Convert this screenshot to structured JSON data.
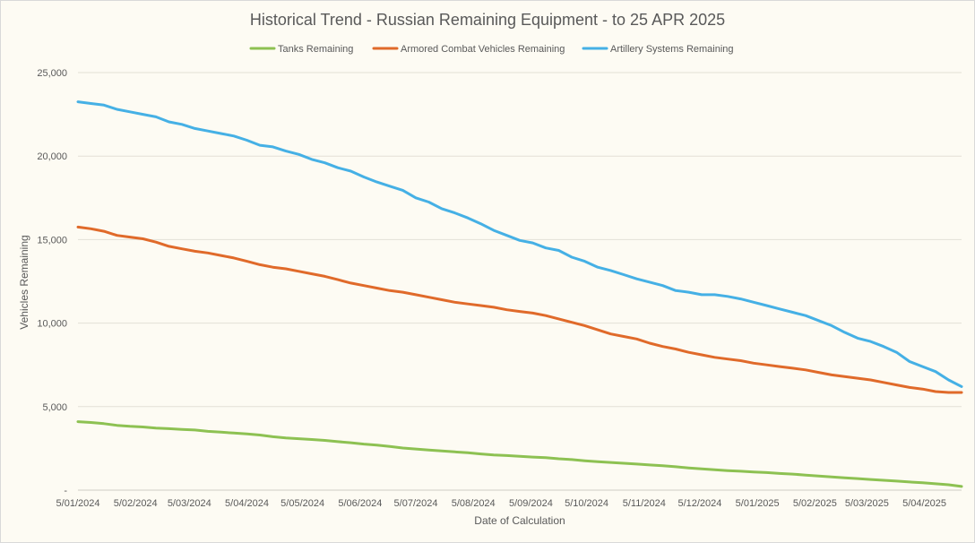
{
  "chart_data": {
    "type": "line",
    "title": "Historical Trend - Russian Remaining Equipment - to 25 APR 2025",
    "xlabel": "Date of Calculation",
    "ylabel": "Vehicles Remaining",
    "ylim": [
      0,
      25000
    ],
    "y_ticks": [
      0,
      5000,
      10000,
      15000,
      20000,
      25000
    ],
    "y_tick_labels": [
      "-",
      "5,000",
      "10,000",
      "15,000",
      "20,000",
      "25,000"
    ],
    "x_tick_labels": [
      "5/01/2024",
      "5/02/2024",
      "5/03/2024",
      "5/04/2024",
      "5/05/2024",
      "5/06/2024",
      "5/07/2024",
      "5/08/2024",
      "5/09/2024",
      "5/10/2024",
      "5/11/2024",
      "5/12/2024",
      "5/01/2025",
      "5/02/2025",
      "5/03/2025",
      "5/04/2025"
    ],
    "x_range": [
      "5/01/2024",
      "25/04/2025"
    ],
    "grid": true,
    "legend_position": "top",
    "series": [
      {
        "name": "Tanks Remaining",
        "color": "#8dc152",
        "points": [
          [
            "5/01/2024",
            4100
          ],
          [
            "12/01/2024",
            4050
          ],
          [
            "19/01/2024",
            3980
          ],
          [
            "26/01/2024",
            3880
          ],
          [
            "2/02/2024",
            3820
          ],
          [
            "9/02/2024",
            3780
          ],
          [
            "16/02/2024",
            3720
          ],
          [
            "23/02/2024",
            3680
          ],
          [
            "1/03/2024",
            3640
          ],
          [
            "8/03/2024",
            3600
          ],
          [
            "15/03/2024",
            3520
          ],
          [
            "22/03/2024",
            3470
          ],
          [
            "29/03/2024",
            3420
          ],
          [
            "5/04/2024",
            3370
          ],
          [
            "12/04/2024",
            3300
          ],
          [
            "19/04/2024",
            3200
          ],
          [
            "26/04/2024",
            3130
          ],
          [
            "3/05/2024",
            3080
          ],
          [
            "10/05/2024",
            3030
          ],
          [
            "17/05/2024",
            2980
          ],
          [
            "24/05/2024",
            2900
          ],
          [
            "31/05/2024",
            2840
          ],
          [
            "7/06/2024",
            2760
          ],
          [
            "14/06/2024",
            2700
          ],
          [
            "21/06/2024",
            2620
          ],
          [
            "28/06/2024",
            2520
          ],
          [
            "5/07/2024",
            2460
          ],
          [
            "12/07/2024",
            2400
          ],
          [
            "19/07/2024",
            2350
          ],
          [
            "26/07/2024",
            2290
          ],
          [
            "2/08/2024",
            2240
          ],
          [
            "9/08/2024",
            2170
          ],
          [
            "16/08/2024",
            2110
          ],
          [
            "23/08/2024",
            2070
          ],
          [
            "30/08/2024",
            2020
          ],
          [
            "6/09/2024",
            1980
          ],
          [
            "13/09/2024",
            1950
          ],
          [
            "20/09/2024",
            1880
          ],
          [
            "27/09/2024",
            1830
          ],
          [
            "4/10/2024",
            1760
          ],
          [
            "11/10/2024",
            1700
          ],
          [
            "18/10/2024",
            1660
          ],
          [
            "25/10/2024",
            1610
          ],
          [
            "1/11/2024",
            1560
          ],
          [
            "8/11/2024",
            1510
          ],
          [
            "15/11/2024",
            1460
          ],
          [
            "22/11/2024",
            1400
          ],
          [
            "29/11/2024",
            1330
          ],
          [
            "6/12/2024",
            1270
          ],
          [
            "13/12/2024",
            1220
          ],
          [
            "20/12/2024",
            1170
          ],
          [
            "27/12/2024",
            1130
          ],
          [
            "3/01/2025",
            1090
          ],
          [
            "10/01/2025",
            1050
          ],
          [
            "17/01/2025",
            1000
          ],
          [
            "24/01/2025",
            960
          ],
          [
            "31/01/2025",
            900
          ],
          [
            "7/02/2025",
            850
          ],
          [
            "14/02/2025",
            790
          ],
          [
            "21/02/2025",
            740
          ],
          [
            "28/02/2025",
            690
          ],
          [
            "7/03/2025",
            640
          ],
          [
            "14/03/2025",
            590
          ],
          [
            "21/03/2025",
            540
          ],
          [
            "28/03/2025",
            490
          ],
          [
            "4/04/2025",
            440
          ],
          [
            "11/04/2025",
            380
          ],
          [
            "18/04/2025",
            320
          ],
          [
            "25/04/2025",
            220
          ]
        ]
      },
      {
        "name": "Armored Combat Vehicles Remaining",
        "color": "#e06a2a",
        "points": [
          [
            "5/01/2024",
            15750
          ],
          [
            "12/01/2024",
            15650
          ],
          [
            "19/01/2024",
            15500
          ],
          [
            "26/01/2024",
            15250
          ],
          [
            "2/02/2024",
            15150
          ],
          [
            "9/02/2024",
            15050
          ],
          [
            "16/02/2024",
            14850
          ],
          [
            "23/02/2024",
            14600
          ],
          [
            "1/03/2024",
            14450
          ],
          [
            "8/03/2024",
            14300
          ],
          [
            "15/03/2024",
            14200
          ],
          [
            "22/03/2024",
            14050
          ],
          [
            "29/03/2024",
            13900
          ],
          [
            "5/04/2024",
            13700
          ],
          [
            "12/04/2024",
            13500
          ],
          [
            "19/04/2024",
            13350
          ],
          [
            "26/04/2024",
            13250
          ],
          [
            "3/05/2024",
            13100
          ],
          [
            "10/05/2024",
            12950
          ],
          [
            "17/05/2024",
            12800
          ],
          [
            "24/05/2024",
            12600
          ],
          [
            "31/05/2024",
            12400
          ],
          [
            "7/06/2024",
            12250
          ],
          [
            "14/06/2024",
            12100
          ],
          [
            "21/06/2024",
            11950
          ],
          [
            "28/06/2024",
            11850
          ],
          [
            "5/07/2024",
            11700
          ],
          [
            "12/07/2024",
            11550
          ],
          [
            "19/07/2024",
            11400
          ],
          [
            "26/07/2024",
            11250
          ],
          [
            "2/08/2024",
            11150
          ],
          [
            "9/08/2024",
            11050
          ],
          [
            "16/08/2024",
            10950
          ],
          [
            "23/08/2024",
            10800
          ],
          [
            "30/08/2024",
            10700
          ],
          [
            "6/09/2024",
            10600
          ],
          [
            "13/09/2024",
            10450
          ],
          [
            "20/09/2024",
            10250
          ],
          [
            "27/09/2024",
            10050
          ],
          [
            "4/10/2024",
            9850
          ],
          [
            "11/10/2024",
            9600
          ],
          [
            "18/10/2024",
            9350
          ],
          [
            "25/10/2024",
            9200
          ],
          [
            "1/11/2024",
            9050
          ],
          [
            "8/11/2024",
            8800
          ],
          [
            "15/11/2024",
            8600
          ],
          [
            "22/11/2024",
            8450
          ],
          [
            "29/11/2024",
            8250
          ],
          [
            "6/12/2024",
            8100
          ],
          [
            "13/12/2024",
            7950
          ],
          [
            "20/12/2024",
            7850
          ],
          [
            "27/12/2024",
            7750
          ],
          [
            "3/01/2025",
            7600
          ],
          [
            "10/01/2025",
            7500
          ],
          [
            "17/01/2025",
            7400
          ],
          [
            "24/01/2025",
            7300
          ],
          [
            "31/01/2025",
            7200
          ],
          [
            "7/02/2025",
            7050
          ],
          [
            "14/02/2025",
            6900
          ],
          [
            "21/02/2025",
            6800
          ],
          [
            "28/02/2025",
            6700
          ],
          [
            "7/03/2025",
            6600
          ],
          [
            "14/03/2025",
            6450
          ],
          [
            "21/03/2025",
            6300
          ],
          [
            "28/03/2025",
            6150
          ],
          [
            "4/04/2025",
            6050
          ],
          [
            "11/04/2025",
            5900
          ],
          [
            "18/04/2025",
            5850
          ],
          [
            "25/04/2025",
            5850
          ]
        ]
      },
      {
        "name": "Artillery Systems Remaining",
        "color": "#45b0e5",
        "points": [
          [
            "5/01/2024",
            23250
          ],
          [
            "12/01/2024",
            23150
          ],
          [
            "19/01/2024",
            23050
          ],
          [
            "26/01/2024",
            22800
          ],
          [
            "2/02/2024",
            22650
          ],
          [
            "9/02/2024",
            22500
          ],
          [
            "16/02/2024",
            22350
          ],
          [
            "23/02/2024",
            22050
          ],
          [
            "1/03/2024",
            21900
          ],
          [
            "8/03/2024",
            21650
          ],
          [
            "15/03/2024",
            21500
          ],
          [
            "22/03/2024",
            21350
          ],
          [
            "29/03/2024",
            21200
          ],
          [
            "5/04/2024",
            20950
          ],
          [
            "12/04/2024",
            20650
          ],
          [
            "19/04/2024",
            20550
          ],
          [
            "26/04/2024",
            20300
          ],
          [
            "3/05/2024",
            20100
          ],
          [
            "10/05/2024",
            19800
          ],
          [
            "17/05/2024",
            19600
          ],
          [
            "24/05/2024",
            19300
          ],
          [
            "31/05/2024",
            19100
          ],
          [
            "7/06/2024",
            18750
          ],
          [
            "14/06/2024",
            18450
          ],
          [
            "21/06/2024",
            18200
          ],
          [
            "28/06/2024",
            17950
          ],
          [
            "5/07/2024",
            17500
          ],
          [
            "12/07/2024",
            17250
          ],
          [
            "19/07/2024",
            16850
          ],
          [
            "26/07/2024",
            16600
          ],
          [
            "2/08/2024",
            16300
          ],
          [
            "9/08/2024",
            15950
          ],
          [
            "16/08/2024",
            15550
          ],
          [
            "23/08/2024",
            15250
          ],
          [
            "30/08/2024",
            14950
          ],
          [
            "6/09/2024",
            14800
          ],
          [
            "13/09/2024",
            14500
          ],
          [
            "20/09/2024",
            14350
          ],
          [
            "27/09/2024",
            13950
          ],
          [
            "4/10/2024",
            13700
          ],
          [
            "11/10/2024",
            13350
          ],
          [
            "18/10/2024",
            13150
          ],
          [
            "25/10/2024",
            12900
          ],
          [
            "1/11/2024",
            12650
          ],
          [
            "8/11/2024",
            12450
          ],
          [
            "15/11/2024",
            12250
          ],
          [
            "22/11/2024",
            11950
          ],
          [
            "29/11/2024",
            11850
          ],
          [
            "6/12/2024",
            11700
          ],
          [
            "13/12/2024",
            11700
          ],
          [
            "20/12/2024",
            11600
          ],
          [
            "27/12/2024",
            11450
          ],
          [
            "3/01/2025",
            11250
          ],
          [
            "10/01/2025",
            11050
          ],
          [
            "17/01/2025",
            10850
          ],
          [
            "24/01/2025",
            10650
          ],
          [
            "31/01/2025",
            10450
          ],
          [
            "7/02/2025",
            10150
          ],
          [
            "14/02/2025",
            9850
          ],
          [
            "21/02/2025",
            9450
          ],
          [
            "28/02/2025",
            9100
          ],
          [
            "7/03/2025",
            8900
          ],
          [
            "14/03/2025",
            8600
          ],
          [
            "21/03/2025",
            8250
          ],
          [
            "28/03/2025",
            7700
          ],
          [
            "4/04/2025",
            7400
          ],
          [
            "11/04/2025",
            7100
          ],
          [
            "18/04/2025",
            6600
          ],
          [
            "25/04/2025",
            6200
          ]
        ]
      }
    ]
  }
}
